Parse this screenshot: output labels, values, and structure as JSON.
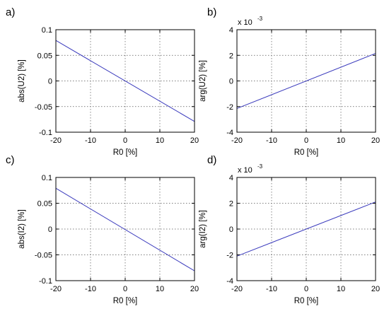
{
  "chart_data": [
    {
      "type": "line",
      "panel_label": "a)",
      "xlabel": "R0 [%]",
      "ylabel": "abs(U2) [%]",
      "multiplier": "",
      "xlim": [
        -20,
        20
      ],
      "ylim": [
        -0.1,
        0.1
      ],
      "xticks": [
        "-20",
        "-10",
        "0",
        "10",
        "20"
      ],
      "yticks": [
        "-0.1",
        "-0.05",
        "0",
        "0.05",
        "0.1"
      ],
      "grid": true,
      "line_color": "#3b3bbd",
      "x": [
        -20,
        20
      ],
      "y": [
        0.079,
        -0.079
      ]
    },
    {
      "type": "line",
      "panel_label": "b)",
      "xlabel": "R0 [%]",
      "ylabel": "arg(U2) [%]",
      "multiplier": "x 10",
      "multiplier_exp": "-3",
      "xlim": [
        -20,
        20
      ],
      "ylim": [
        -4,
        4
      ],
      "xticks": [
        "-20",
        "-10",
        "0",
        "10",
        "20"
      ],
      "yticks": [
        "-4",
        "-2",
        "0",
        "2",
        "4"
      ],
      "grid": true,
      "line_color": "#3b3bbd",
      "x": [
        -20,
        20
      ],
      "y": [
        -2.15,
        2.15
      ]
    },
    {
      "type": "line",
      "panel_label": "c)",
      "xlabel": "R0 [%]",
      "ylabel": "abs(I2) [%]",
      "multiplier": "",
      "xlim": [
        -20,
        20
      ],
      "ylim": [
        -0.1,
        0.1
      ],
      "xticks": [
        "-20",
        "-10",
        "0",
        "10",
        "20"
      ],
      "yticks": [
        "-0.1",
        "-0.05",
        "0",
        "0.05",
        "0.1"
      ],
      "grid": true,
      "line_color": "#3b3bbd",
      "x": [
        -20,
        20
      ],
      "y": [
        0.079,
        -0.081
      ]
    },
    {
      "type": "line",
      "panel_label": "d)",
      "xlabel": "R0 [%]",
      "ylabel": "arg(I2) [%]",
      "multiplier": "x 10",
      "multiplier_exp": "-3",
      "xlim": [
        -20,
        20
      ],
      "ylim": [
        -4,
        4
      ],
      "xticks": [
        "-20",
        "-10",
        "0",
        "10",
        "20"
      ],
      "yticks": [
        "-4",
        "-2",
        "0",
        "2",
        "4"
      ],
      "grid": true,
      "line_color": "#3b3bbd",
      "x": [
        -20,
        20
      ],
      "y": [
        -2.1,
        2.1
      ]
    }
  ]
}
